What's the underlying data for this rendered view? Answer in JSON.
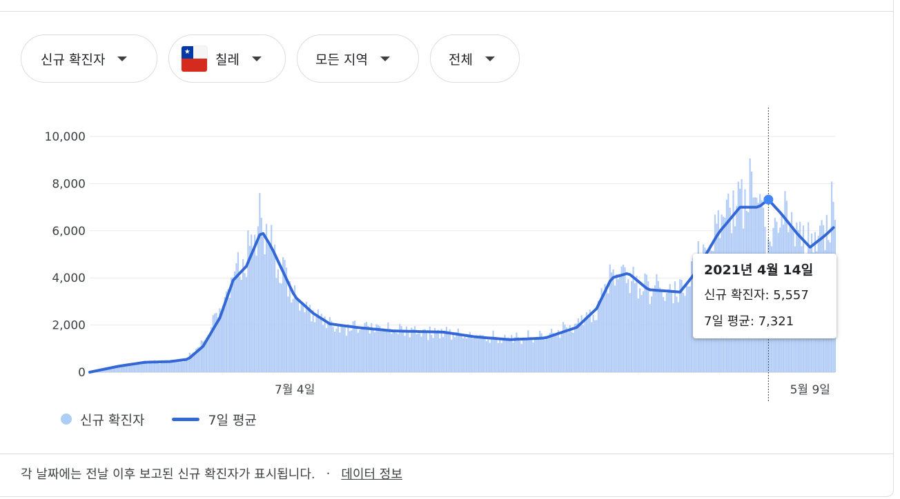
{
  "filters": {
    "metric": "신규 확진자",
    "country": "칠레",
    "region": "모든 지역",
    "period": "전체"
  },
  "colors": {
    "bar": "#b3cdf6",
    "average_line": "#3367d6",
    "grid": "#e8eaed",
    "cursor": "#3c4043"
  },
  "chart_data": {
    "type": "bar",
    "title": "",
    "xlabel": "",
    "ylabel": "",
    "x_range": [
      "2020-03-03",
      "2021-05-24"
    ],
    "x_ticks": [
      {
        "date": "2020-07-04",
        "label": "7월 4일"
      },
      {
        "date": "2021-05-09",
        "label": "5월 9일"
      }
    ],
    "ylim": [
      0,
      10000
    ],
    "y_ticks": [
      0,
      2000,
      4000,
      6000,
      8000,
      10000
    ],
    "y_tick_labels": [
      "0",
      "2,000",
      "4,000",
      "6,000",
      "8,000",
      "10,000"
    ],
    "grid": true,
    "legend_position": "bottom-left",
    "series": [
      {
        "name": "신규 확진자",
        "kind": "bar",
        "knots": [
          [
            "2020-03-03",
            0
          ],
          [
            "2020-03-20",
            250
          ],
          [
            "2020-04-05",
            420
          ],
          [
            "2020-04-20",
            450
          ],
          [
            "2020-05-01",
            600
          ],
          [
            "2020-05-10",
            1300
          ],
          [
            "2020-05-20",
            2500
          ],
          [
            "2020-05-28",
            4200
          ],
          [
            "2020-06-05",
            4700
          ],
          [
            "2020-06-14",
            6500
          ],
          [
            "2020-06-20",
            5200
          ],
          [
            "2020-06-28",
            4200
          ],
          [
            "2020-07-04",
            3300
          ],
          [
            "2020-07-15",
            2600
          ],
          [
            "2020-07-25",
            2000
          ],
          [
            "2020-08-10",
            1900
          ],
          [
            "2020-09-01",
            1750
          ],
          [
            "2020-10-01",
            1700
          ],
          [
            "2020-10-20",
            1550
          ],
          [
            "2020-11-10",
            1400
          ],
          [
            "2020-12-01",
            1500
          ],
          [
            "2020-12-20",
            2000
          ],
          [
            "2021-01-01",
            2600
          ],
          [
            "2021-01-10",
            4300
          ],
          [
            "2021-01-20",
            4200
          ],
          [
            "2021-02-01",
            3500
          ],
          [
            "2021-02-20",
            3400
          ],
          [
            "2021-03-01",
            4700
          ],
          [
            "2021-03-15",
            6300
          ],
          [
            "2021-03-28",
            7400
          ],
          [
            "2021-04-08",
            7900
          ],
          [
            "2021-04-14",
            5557
          ],
          [
            "2021-04-22",
            6800
          ],
          [
            "2021-05-01",
            5900
          ],
          [
            "2021-05-09",
            5300
          ],
          [
            "2021-05-18",
            6400
          ],
          [
            "2021-05-24",
            6700
          ]
        ]
      },
      {
        "name": "7일 평균",
        "kind": "line",
        "knots": [
          [
            "2020-03-03",
            0
          ],
          [
            "2020-03-20",
            250
          ],
          [
            "2020-04-05",
            420
          ],
          [
            "2020-04-20",
            450
          ],
          [
            "2020-05-01",
            550
          ],
          [
            "2020-05-10",
            1100
          ],
          [
            "2020-05-20",
            2300
          ],
          [
            "2020-05-28",
            3900
          ],
          [
            "2020-06-05",
            4500
          ],
          [
            "2020-06-14",
            6000
          ],
          [
            "2020-06-20",
            5300
          ],
          [
            "2020-06-28",
            4100
          ],
          [
            "2020-07-04",
            3200
          ],
          [
            "2020-07-15",
            2500
          ],
          [
            "2020-07-25",
            2050
          ],
          [
            "2020-08-10",
            1900
          ],
          [
            "2020-09-01",
            1750
          ],
          [
            "2020-10-01",
            1700
          ],
          [
            "2020-10-20",
            1500
          ],
          [
            "2020-11-10",
            1380
          ],
          [
            "2020-12-01",
            1450
          ],
          [
            "2020-12-20",
            1900
          ],
          [
            "2021-01-01",
            2700
          ],
          [
            "2021-01-10",
            4000
          ],
          [
            "2021-01-20",
            4200
          ],
          [
            "2021-02-01",
            3500
          ],
          [
            "2021-02-20",
            3400
          ],
          [
            "2021-03-01",
            4200
          ],
          [
            "2021-03-15",
            5900
          ],
          [
            "2021-03-28",
            7000
          ],
          [
            "2021-04-08",
            7000
          ],
          [
            "2021-04-14",
            7321
          ],
          [
            "2021-04-22",
            6700
          ],
          [
            "2021-05-01",
            5900
          ],
          [
            "2021-05-09",
            5300
          ],
          [
            "2021-05-18",
            5800
          ],
          [
            "2021-05-24",
            6200
          ]
        ]
      }
    ],
    "hovered": {
      "date": "2021-04-14"
    }
  },
  "tooltip": {
    "date": "2021년 4월 14일",
    "new_cases_label": "신규 확진자: 5,557",
    "average_label": "7일 평균: 7,321"
  },
  "legend": {
    "bars": "신규 확진자",
    "line": "7일 평균"
  },
  "footer": {
    "note": "각 날짜에는 전날 이후 보고된 신규 확진자가 표시됩니다.",
    "separator": "·",
    "link": "데이터 정보"
  }
}
